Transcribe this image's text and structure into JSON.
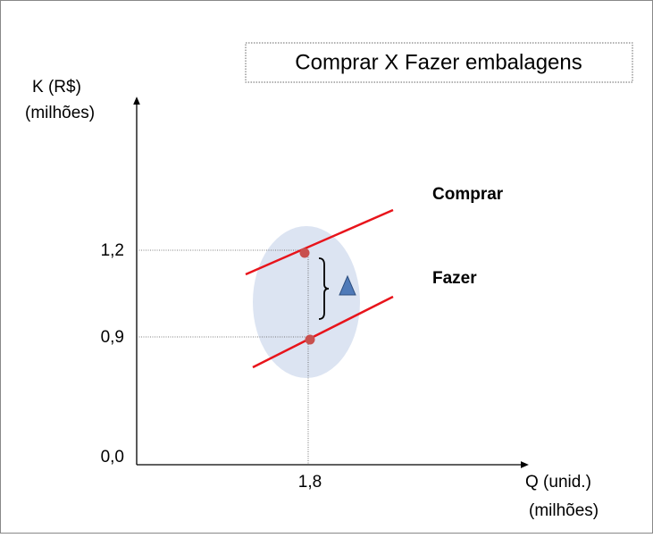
{
  "title": "Comprar  X  Fazer embalagens",
  "y_axis": {
    "label": [
      "K (R$)",
      "(milhões)"
    ],
    "ticks": [
      "1,2",
      "0,9",
      "0,0"
    ]
  },
  "x_axis": {
    "label": [
      "Q (unid.)",
      "(milhões)"
    ],
    "ticks": [
      "1,8"
    ]
  },
  "lines": [
    {
      "label": "Comprar"
    },
    {
      "label": "Fazer"
    }
  ]
}
